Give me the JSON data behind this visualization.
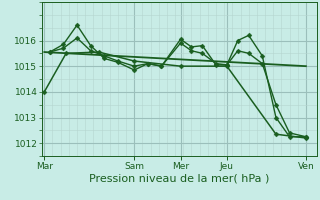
{
  "background_color": "#c8ece6",
  "plot_bg_color": "#c8ece6",
  "grid_color_major": "#9bbfbb",
  "grid_color_minor": "#b5d5d0",
  "line_color": "#1a5e20",
  "ylim": [
    1011.5,
    1017.5
  ],
  "yticks": [
    1012,
    1013,
    1014,
    1015,
    1016
  ],
  "xlabel": "Pression niveau de la mer( hPa )",
  "xlabel_fontsize": 8,
  "xtick_labels": [
    "Mar",
    "Sam",
    "Mer",
    "Jeu",
    "Ven"
  ],
  "xtick_positions": [
    0,
    33,
    50,
    67,
    96
  ],
  "xlim": [
    -1,
    100
  ],
  "series": [
    {
      "x": [
        2,
        7,
        12,
        17,
        22,
        27,
        33,
        38,
        43,
        50,
        54,
        58,
        63,
        67,
        71,
        75,
        80,
        85,
        90,
        96
      ],
      "y": [
        1015.55,
        1015.85,
        1016.6,
        1015.8,
        1015.3,
        1015.15,
        1014.85,
        1015.1,
        1015.0,
        1016.05,
        1015.75,
        1015.8,
        1015.05,
        1015.05,
        1016.0,
        1016.2,
        1015.4,
        1013.0,
        1012.25,
        1012.25
      ],
      "marker": "D",
      "markersize": 2.5,
      "linewidth": 1.0,
      "zorder": 3
    },
    {
      "x": [
        2,
        7,
        12,
        17,
        22,
        27,
        33,
        38,
        43,
        50,
        54,
        58,
        63,
        67,
        71,
        75,
        80,
        85,
        90,
        96
      ],
      "y": [
        1015.55,
        1015.7,
        1016.1,
        1015.6,
        1015.4,
        1015.2,
        1015.0,
        1015.1,
        1015.0,
        1015.9,
        1015.6,
        1015.5,
        1015.1,
        1015.05,
        1015.6,
        1015.5,
        1015.1,
        1013.5,
        1012.4,
        1012.25
      ],
      "marker": "D",
      "markersize": 2.5,
      "linewidth": 1.0,
      "zorder": 3
    },
    {
      "x": [
        0,
        8,
        20,
        33,
        50,
        67,
        85,
        96
      ],
      "y": [
        1014.0,
        1015.5,
        1015.55,
        1015.2,
        1015.0,
        1015.0,
        1012.35,
        1012.2
      ],
      "marker": "D",
      "markersize": 2.5,
      "linewidth": 1.1,
      "zorder": 3
    },
    {
      "x": [
        0,
        96
      ],
      "y": [
        1015.55,
        1015.0
      ],
      "marker": "none",
      "markersize": 0,
      "linewidth": 1.3,
      "zorder": 2
    }
  ]
}
